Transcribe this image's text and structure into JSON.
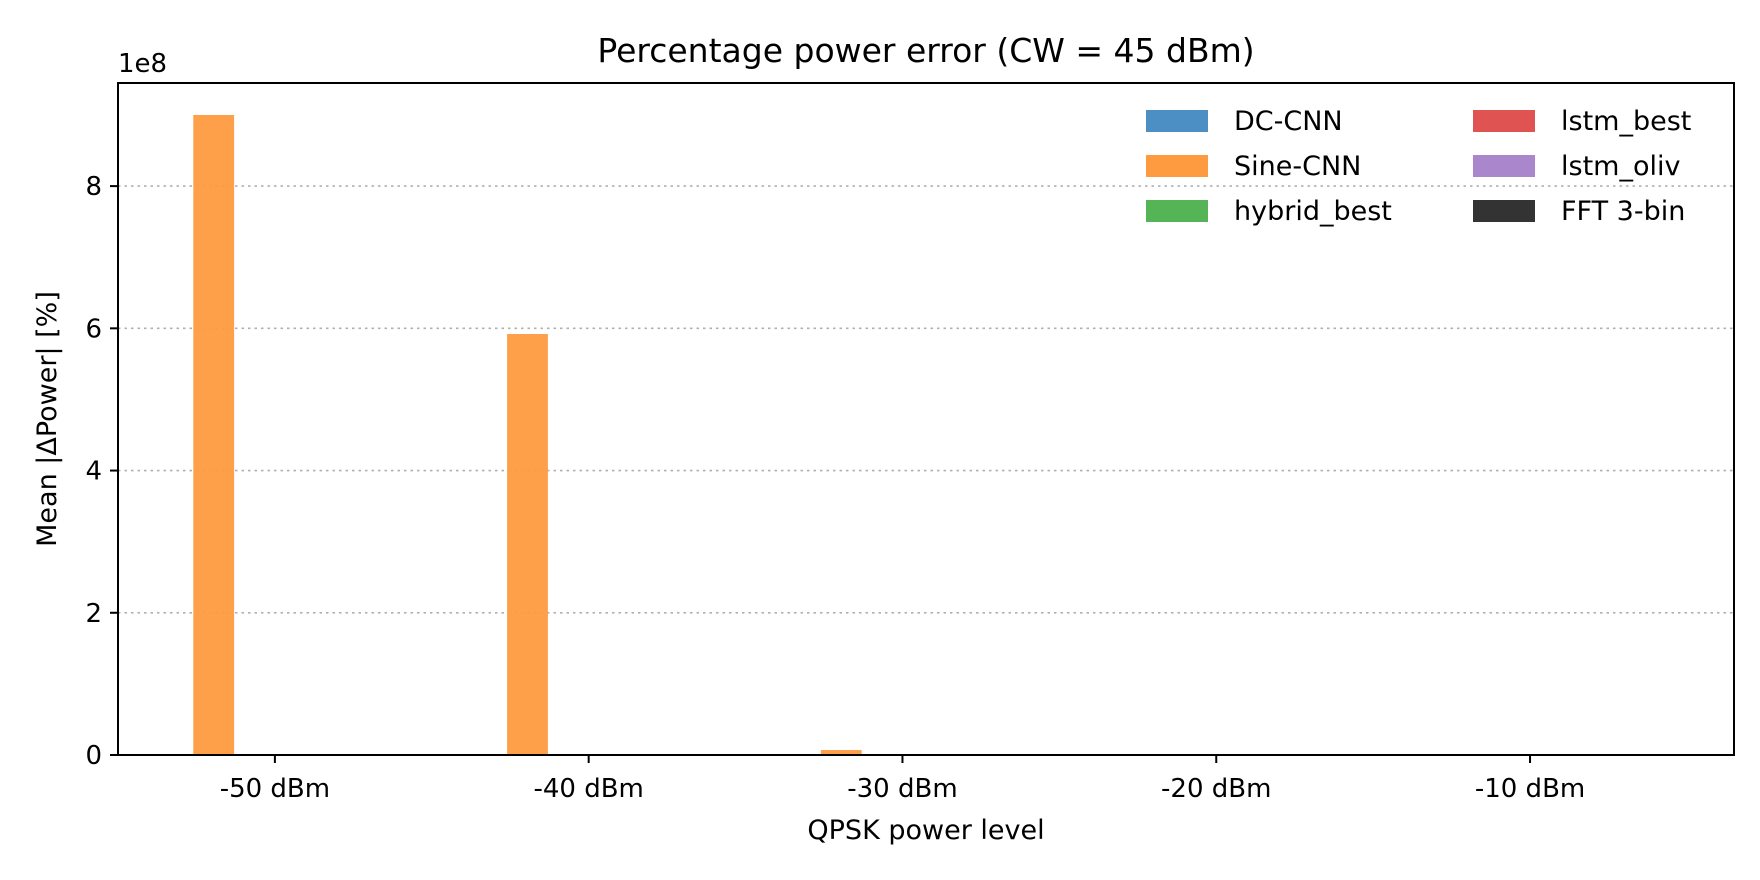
{
  "chart_data": {
    "type": "bar",
    "title": "Percentage power error (CW = 45 dBm)",
    "xlabel": "QPSK power level",
    "ylabel": "Mean |ΔPower| [%]",
    "y_offset_label": "1e8",
    "categories": [
      "-50 dBm",
      "-40 dBm",
      "-30 dBm",
      "-20 dBm",
      "-10 dBm"
    ],
    "y_ticks": [
      0,
      2,
      4,
      6,
      8
    ],
    "y_tick_labels": [
      "0",
      "2",
      "4",
      "6",
      "8"
    ],
    "ylim": [
      0,
      9.45
    ],
    "y_scale_multiplier": 100000000,
    "grid": "y-dotted",
    "legend_placement": "top-right",
    "legend_columns": 2,
    "series": [
      {
        "name": "DC-CNN",
        "color": "#4c8fc5",
        "values": [
          0,
          0,
          0,
          0,
          0
        ]
      },
      {
        "name": "Sine-CNN",
        "color": "#fe9a40",
        "values": [
          9.0,
          5.92,
          0.07,
          0.0,
          0.0
        ]
      },
      {
        "name": "hybrid_best",
        "color": "#55b455",
        "values": [
          0,
          0,
          0,
          0,
          0
        ]
      },
      {
        "name": "lstm_best",
        "color": "#df5353",
        "values": [
          0,
          0,
          0,
          0,
          0
        ]
      },
      {
        "name": "lstm_oliv",
        "color": "#aa87cc",
        "values": [
          0,
          0,
          0,
          0,
          0
        ]
      },
      {
        "name": "FFT 3-bin",
        "color": "#333333",
        "values": [
          0,
          0,
          0,
          0,
          0
        ]
      }
    ]
  }
}
